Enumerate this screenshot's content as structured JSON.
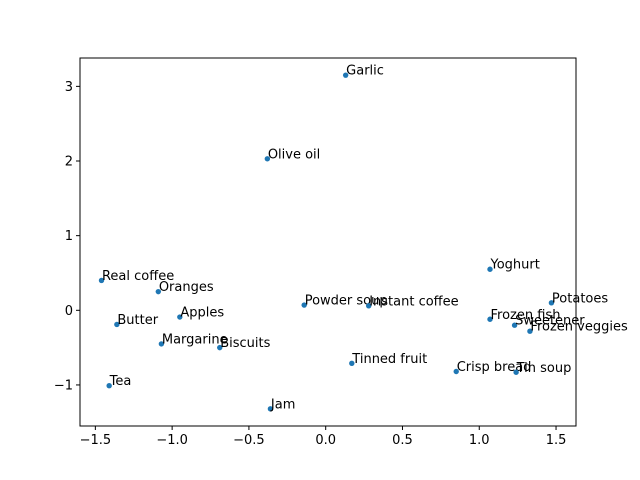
{
  "chart_data": {
    "type": "scatter",
    "title": "",
    "xlabel": "",
    "ylabel": "",
    "xlim": [
      -1.6,
      1.63
    ],
    "ylim": [
      -1.55,
      3.38
    ],
    "xticks": [
      -1.5,
      -1.0,
      -0.5,
      0.0,
      0.5,
      1.0,
      1.5
    ],
    "xtick_labels": [
      "−1.5",
      "−1.0",
      "−0.5",
      "0.0",
      "0.5",
      "1.0",
      "1.5"
    ],
    "yticks": [
      -1,
      0,
      1,
      2,
      3
    ],
    "ytick_labels": [
      "−1",
      "0",
      "1",
      "2",
      "3"
    ],
    "grid": false,
    "marker_color": "#1f77b4",
    "points": [
      {
        "label": "Garlic",
        "x": 0.13,
        "y": 3.15
      },
      {
        "label": "Olive oil",
        "x": -0.38,
        "y": 2.03
      },
      {
        "label": "Yoghurt",
        "x": 1.07,
        "y": 0.55
      },
      {
        "label": "Real coffee",
        "x": -1.46,
        "y": 0.4
      },
      {
        "label": "Oranges",
        "x": -1.09,
        "y": 0.25
      },
      {
        "label": "Potatoes",
        "x": 1.47,
        "y": 0.1
      },
      {
        "label": "Powder soup",
        "x": -0.14,
        "y": 0.07
      },
      {
        "label": "Instant coffee",
        "x": 0.28,
        "y": 0.06
      },
      {
        "label": "Apples",
        "x": -0.95,
        "y": -0.09
      },
      {
        "label": "Frozen fish",
        "x": 1.07,
        "y": -0.12
      },
      {
        "label": "Butter",
        "x": -1.36,
        "y": -0.19
      },
      {
        "label": "Sweetener",
        "x": 1.23,
        "y": -0.2
      },
      {
        "label": "Frozen veggies",
        "x": 1.33,
        "y": -0.28
      },
      {
        "label": "Margarine",
        "x": -1.07,
        "y": -0.45
      },
      {
        "label": "Biscuits",
        "x": -0.69,
        "y": -0.5
      },
      {
        "label": "Tinned fruit",
        "x": 0.17,
        "y": -0.71
      },
      {
        "label": "Crisp bread",
        "x": 0.85,
        "y": -0.82
      },
      {
        "label": "Tin soup",
        "x": 1.24,
        "y": -0.83
      },
      {
        "label": "Tea",
        "x": -1.41,
        "y": -1.01
      },
      {
        "label": "Jam",
        "x": -0.36,
        "y": -1.32
      }
    ]
  }
}
